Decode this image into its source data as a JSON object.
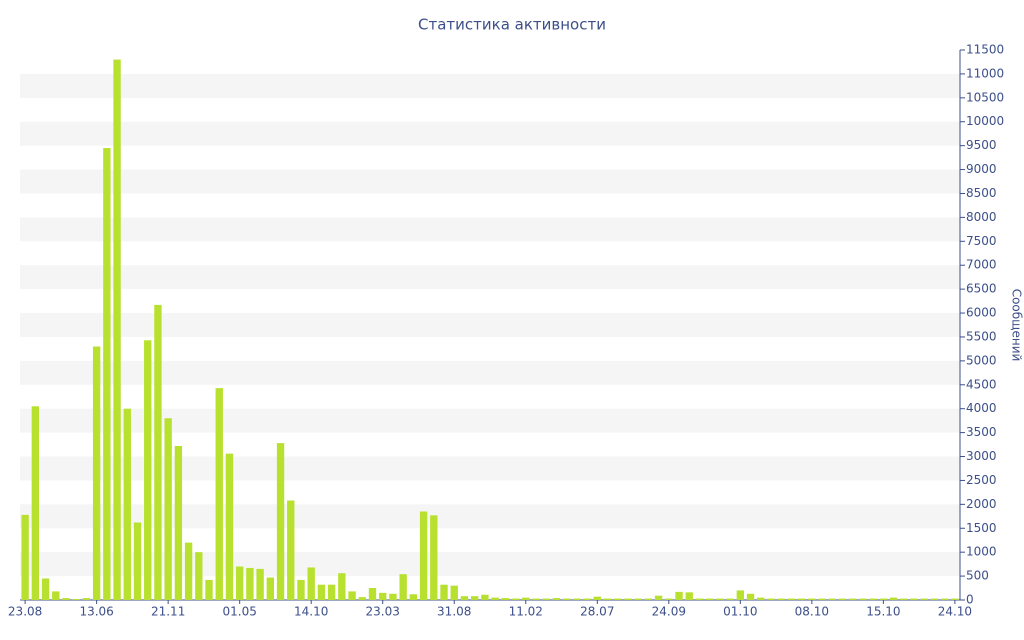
{
  "chart_data": {
    "type": "bar",
    "title": "Статистика активности",
    "y_label": "Сообщений",
    "categories": [
      "23.08",
      null,
      null,
      null,
      null,
      null,
      null,
      "13.06",
      null,
      null,
      null,
      null,
      null,
      null,
      "21.11",
      null,
      null,
      null,
      null,
      null,
      null,
      "01.05",
      null,
      null,
      null,
      null,
      null,
      null,
      "14.10",
      null,
      null,
      null,
      null,
      null,
      null,
      "23.03",
      null,
      null,
      null,
      null,
      null,
      null,
      "31.08",
      null,
      null,
      null,
      null,
      null,
      null,
      "11.02",
      null,
      null,
      null,
      null,
      null,
      null,
      "28.07",
      null,
      null,
      null,
      null,
      null,
      null,
      "24.09",
      null,
      null,
      null,
      null,
      null,
      null,
      "01.10",
      null,
      null,
      null,
      null,
      null,
      null,
      "08.10",
      null,
      null,
      null,
      null,
      null,
      null,
      "15.10",
      null,
      null,
      null,
      null,
      null,
      null,
      "24.10"
    ],
    "values": [
      1780,
      4050,
      450,
      180,
      40,
      20,
      40,
      5300,
      9450,
      11300,
      4000,
      1620,
      5430,
      6170,
      3800,
      3220,
      1200,
      1000,
      420,
      4430,
      3060,
      700,
      670,
      650,
      470,
      3280,
      2080,
      420,
      680,
      320,
      320,
      560,
      180,
      60,
      250,
      150,
      130,
      540,
      120,
      1850,
      1770,
      320,
      300,
      80,
      80,
      110,
      50,
      40,
      30,
      50,
      30,
      30,
      40,
      30,
      30,
      30,
      70,
      30,
      30,
      30,
      30,
      30,
      90,
      30,
      170,
      160,
      30,
      30,
      30,
      30,
      200,
      130,
      50,
      30,
      30,
      30,
      30,
      30,
      30,
      30,
      30,
      30,
      30,
      30,
      30,
      50,
      30,
      30,
      30,
      30,
      30,
      30
    ],
    "color": "#b8e02e",
    "ylim": [
      0,
      11500
    ],
    "yticks": [
      0,
      500,
      1000,
      1500,
      2000,
      2500,
      3000,
      3500,
      4000,
      4500,
      5000,
      5500,
      6000,
      6500,
      7000,
      7500,
      8000,
      8500,
      9000,
      9500,
      10000,
      10500,
      11000,
      11500
    ],
    "grid": "bands",
    "y_axis_side": "right"
  }
}
